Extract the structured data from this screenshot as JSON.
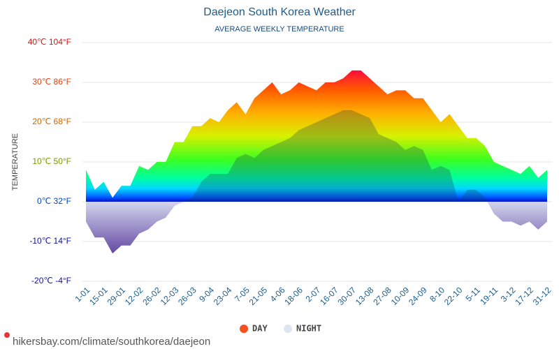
{
  "chart_data": {
    "type": "area",
    "title": "Daejeon South Korea Weather",
    "subtitle": "AVERAGE WEEKLY TEMPERATURE",
    "y_label": "TEMPERATURE",
    "source": "hikersbay.com/climate/southkorea/daejeon",
    "categories": [
      "1-01",
      null,
      "15-01",
      null,
      "29-01",
      null,
      "12-02",
      null,
      "26-02",
      null,
      "12-03",
      null,
      "26-03",
      null,
      "9-04",
      null,
      "23-04",
      null,
      "7-05",
      null,
      "21-05",
      null,
      "4-06",
      null,
      "18-06",
      null,
      "2-07",
      null,
      "16-07",
      null,
      "30-07",
      null,
      "13-08",
      null,
      "27-08",
      null,
      "10-09",
      null,
      "24-09",
      null,
      "8-10",
      null,
      "22-10",
      null,
      "5-11",
      null,
      "19-11",
      null,
      "3-12",
      null,
      "17-12",
      null,
      "31-12"
    ],
    "series": [
      {
        "name": "DAY",
        "color": "#f4511e",
        "values": [
          8,
          3,
          5,
          1,
          4,
          4,
          9,
          8,
          10,
          10,
          15,
          15,
          19,
          19,
          21,
          20,
          23,
          25,
          22,
          26,
          28,
          30,
          27,
          28,
          30,
          29,
          28,
          30,
          30,
          31,
          33,
          33,
          31,
          29,
          27,
          28,
          28,
          26,
          26,
          23,
          20,
          22,
          19,
          16,
          16,
          14,
          10,
          9,
          8,
          7,
          9,
          6,
          8
        ]
      },
      {
        "name": "NIGHT",
        "color": "#dde6f0",
        "values": [
          -5,
          -9,
          -9,
          -13,
          -11,
          -11,
          -8,
          -7,
          -5,
          -4,
          -1,
          0,
          1,
          5,
          7,
          7,
          7,
          11,
          12,
          11,
          13,
          14,
          15,
          16,
          18,
          19,
          20,
          21,
          22,
          23,
          23,
          22,
          21,
          17,
          16,
          15,
          13,
          14,
          13,
          8,
          9,
          8,
          0,
          3,
          3,
          1,
          -3,
          -5,
          -5,
          -6,
          -5,
          -7,
          -5
        ]
      }
    ],
    "ylim": [
      -20,
      40
    ],
    "yticks": [
      {
        "value": -20,
        "label": "-20℃ -4°F"
      },
      {
        "value": -10,
        "label": "-10℃ 14°F"
      },
      {
        "value": 0,
        "label": "0℃ 32°F"
      },
      {
        "value": 10,
        "label": "10℃ 50°F"
      },
      {
        "value": 20,
        "label": "20℃ 68°F"
      },
      {
        "value": 30,
        "label": "30℃ 86°F"
      },
      {
        "value": 40,
        "label": "40℃ 104°F"
      }
    ],
    "grid": true
  }
}
